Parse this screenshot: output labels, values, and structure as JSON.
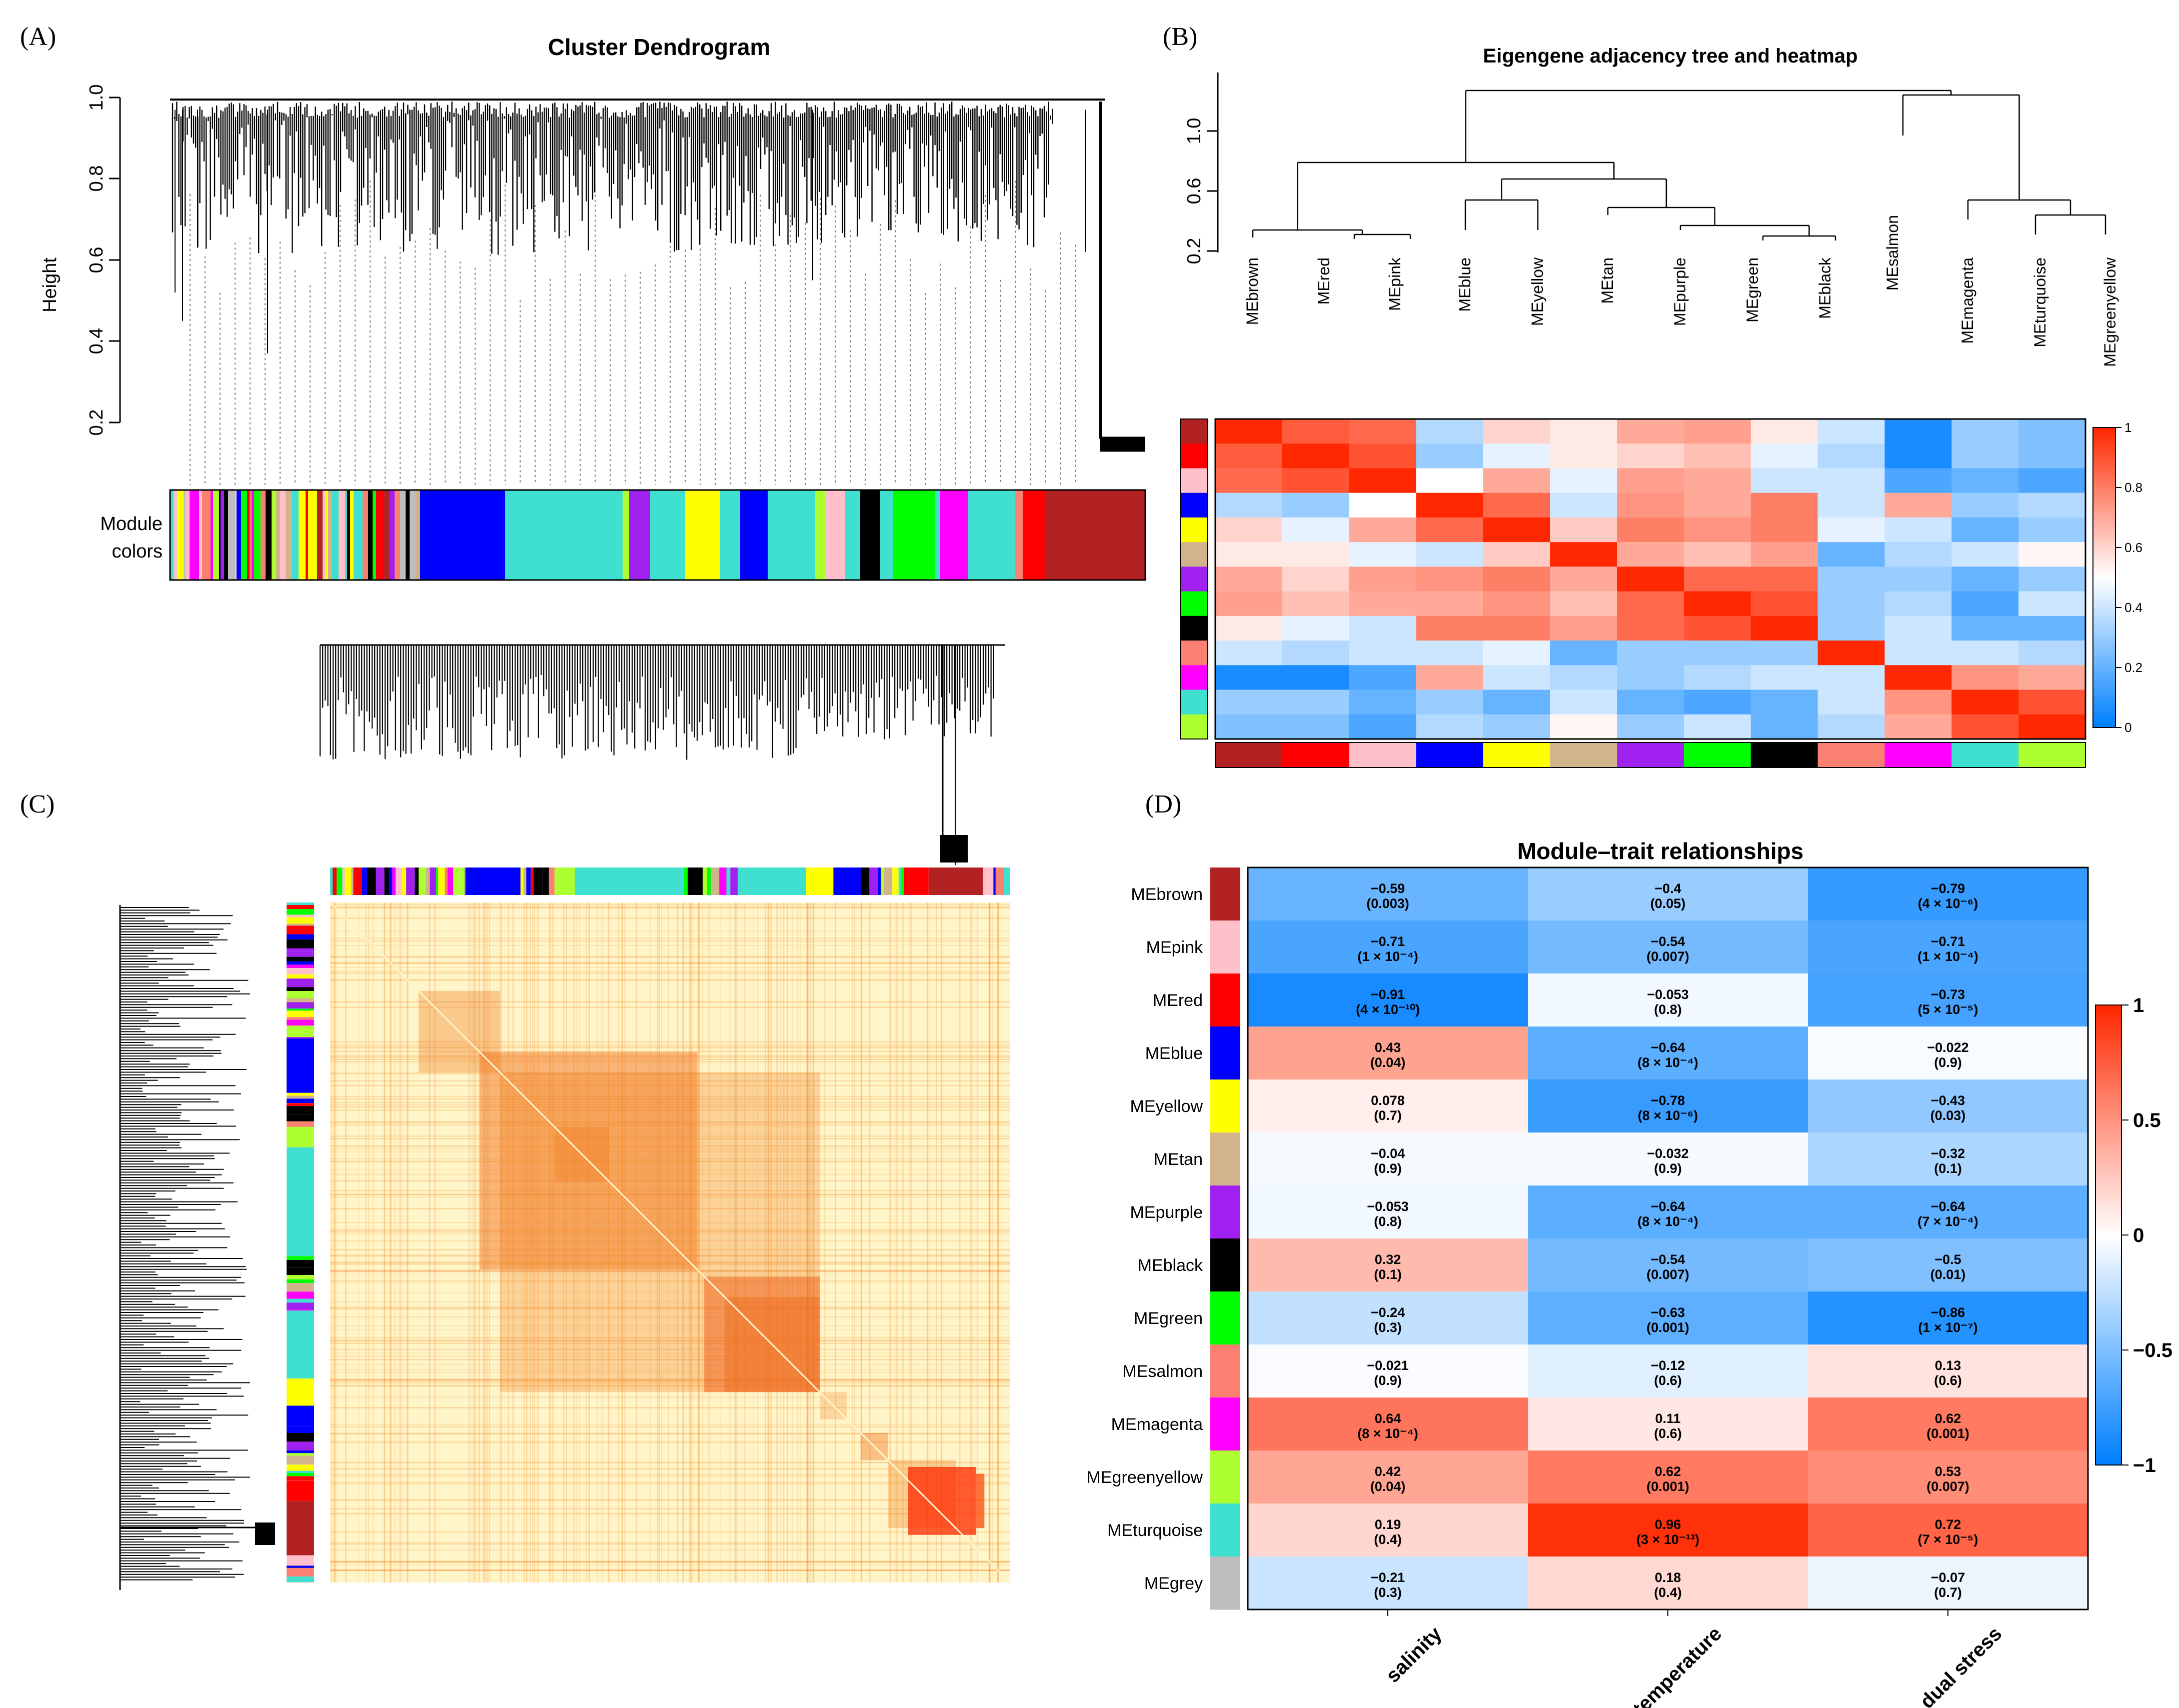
{
  "panels": {
    "A": {
      "label": "(A)",
      "title": "Cluster Dendrogram",
      "ylabel": "Height",
      "yticks": [
        "1.0",
        "0.8",
        "0.6",
        "0.4",
        "0.2"
      ],
      "module_colors_label_1": "Module",
      "module_colors_label_2": "colors"
    },
    "B": {
      "label": "(B)",
      "title": "Eigengene adjacency tree and heatmap",
      "yticks": [
        "1.0",
        "0.6",
        "0.2"
      ],
      "legend_ticks": [
        "1",
        "0.8",
        "0.6",
        "0.4",
        "0.2",
        "0"
      ]
    },
    "C": {
      "label": "(C)"
    },
    "D": {
      "label": "(D)",
      "title": "Module–trait relationships",
      "legend_ticks": [
        "1",
        "0.5",
        "0",
        "−0.5",
        "−1"
      ]
    }
  },
  "colors": {
    "brown": "#B22222",
    "red": "#FF0000",
    "pink": "#FFC0CB",
    "blue": "#0000FF",
    "yellow": "#FFFF00",
    "tan": "#D2B48C",
    "purple": "#A020F0",
    "green": "#00FF00",
    "black": "#000000",
    "salmon": "#FA8072",
    "magenta": "#FF00FF",
    "turquoise": "#40E0D0",
    "greenyellow": "#ADFF2F",
    "grey": "#BEBEBE"
  },
  "chart_data": [
    {
      "type": "heatmap",
      "panel": "B",
      "title": "Eigengene adjacency tree and heatmap",
      "dendrogram_labels": [
        "MEbrown",
        "MEred",
        "MEpink",
        "MEblue",
        "MEyellow",
        "MEtan",
        "MEpurple",
        "MEgreen",
        "MEblack",
        "MEsalmon",
        "MEmagenta",
        "MEturquoise",
        "MEgreenyellow"
      ],
      "rows": [
        "brown",
        "red",
        "pink",
        "blue",
        "yellow",
        "tan",
        "purple",
        "green",
        "black",
        "salmon",
        "magenta",
        "turquoise",
        "greenyellow"
      ],
      "cols": [
        "brown",
        "red",
        "pink",
        "blue",
        "yellow",
        "tan",
        "purple",
        "green",
        "black",
        "salmon",
        "magenta",
        "turquoise",
        "greenyellow"
      ],
      "values": [
        [
          1.0,
          0.88,
          0.85,
          0.35,
          0.6,
          0.55,
          0.7,
          0.72,
          0.55,
          0.4,
          0.05,
          0.3,
          0.25
        ],
        [
          0.88,
          1.0,
          0.9,
          0.3,
          0.45,
          0.55,
          0.6,
          0.65,
          0.45,
          0.35,
          0.05,
          0.3,
          0.25
        ],
        [
          0.85,
          0.9,
          1.0,
          0.5,
          0.7,
          0.45,
          0.72,
          0.7,
          0.4,
          0.4,
          0.15,
          0.2,
          0.15
        ],
        [
          0.35,
          0.3,
          0.5,
          1.0,
          0.85,
          0.4,
          0.75,
          0.7,
          0.8,
          0.4,
          0.7,
          0.3,
          0.35
        ],
        [
          0.6,
          0.45,
          0.7,
          0.85,
          1.0,
          0.62,
          0.8,
          0.75,
          0.8,
          0.45,
          0.4,
          0.2,
          0.3
        ],
        [
          0.55,
          0.55,
          0.45,
          0.4,
          0.62,
          1.0,
          0.7,
          0.65,
          0.72,
          0.2,
          0.35,
          0.4,
          0.52
        ],
        [
          0.7,
          0.6,
          0.72,
          0.75,
          0.8,
          0.7,
          1.0,
          0.85,
          0.85,
          0.3,
          0.3,
          0.2,
          0.3
        ],
        [
          0.72,
          0.65,
          0.7,
          0.7,
          0.75,
          0.65,
          0.85,
          1.0,
          0.9,
          0.3,
          0.35,
          0.15,
          0.4
        ],
        [
          0.55,
          0.45,
          0.4,
          0.8,
          0.8,
          0.72,
          0.85,
          0.9,
          1.0,
          0.3,
          0.4,
          0.2,
          0.2
        ],
        [
          0.4,
          0.35,
          0.4,
          0.4,
          0.45,
          0.2,
          0.3,
          0.3,
          0.3,
          1.0,
          0.4,
          0.4,
          0.35
        ],
        [
          0.05,
          0.05,
          0.15,
          0.7,
          0.4,
          0.35,
          0.3,
          0.35,
          0.4,
          0.4,
          1.0,
          0.75,
          0.7
        ],
        [
          0.3,
          0.3,
          0.2,
          0.3,
          0.2,
          0.4,
          0.2,
          0.15,
          0.2,
          0.4,
          0.75,
          1.0,
          0.9
        ],
        [
          0.25,
          0.25,
          0.15,
          0.35,
          0.3,
          0.52,
          0.3,
          0.4,
          0.2,
          0.35,
          0.7,
          0.9,
          1.0
        ]
      ],
      "legend_range": [
        0,
        1
      ],
      "ylim": [
        0.2,
        1.4
      ]
    },
    {
      "type": "heatmap",
      "panel": "D",
      "title": "Module–trait relationships",
      "rows": [
        "MEbrown",
        "MEpink",
        "MEred",
        "MEblue",
        "MEyellow",
        "MEtan",
        "MEpurple",
        "MEblack",
        "MEgreen",
        "MEsalmon",
        "MEmagenta",
        "MEgreenyellow",
        "MEturquoise",
        "MEgrey"
      ],
      "row_colors": [
        "brown",
        "pink",
        "red",
        "blue",
        "yellow",
        "tan",
        "purple",
        "black",
        "green",
        "salmon",
        "magenta",
        "greenyellow",
        "turquoise",
        "grey"
      ],
      "cols": [
        "salinity",
        "temperature",
        "dual stress"
      ],
      "values": [
        [
          -0.59,
          -0.4,
          -0.79
        ],
        [
          -0.71,
          -0.54,
          -0.71
        ],
        [
          -0.91,
          -0.053,
          -0.73
        ],
        [
          0.43,
          -0.64,
          -0.022
        ],
        [
          0.078,
          -0.78,
          -0.43
        ],
        [
          -0.04,
          -0.032,
          -0.32
        ],
        [
          -0.053,
          -0.64,
          -0.64
        ],
        [
          0.32,
          -0.54,
          -0.5
        ],
        [
          -0.24,
          -0.63,
          -0.86
        ],
        [
          -0.021,
          -0.12,
          0.13
        ],
        [
          0.64,
          0.11,
          0.62
        ],
        [
          0.42,
          0.62,
          0.53
        ],
        [
          0.19,
          0.96,
          0.72
        ],
        [
          -0.21,
          0.18,
          -0.07
        ]
      ],
      "cell_text": [
        [
          [
            "−0.59",
            "(0.003)"
          ],
          [
            "−0.4",
            "(0.05)"
          ],
          [
            "−0.79",
            "(4 × 10⁻⁶)"
          ]
        ],
        [
          [
            "−0.71",
            "(1 × 10⁻⁴)"
          ],
          [
            "−0.54",
            "(0.007)"
          ],
          [
            "−0.71",
            "(1 × 10⁻⁴)"
          ]
        ],
        [
          [
            "−0.91",
            "(4 × 10⁻¹⁰)"
          ],
          [
            "−0.053",
            "(0.8)"
          ],
          [
            "−0.73",
            "(5 × 10⁻⁵)"
          ]
        ],
        [
          [
            "0.43",
            "(0.04)"
          ],
          [
            "−0.64",
            "(8 × 10⁻⁴)"
          ],
          [
            "−0.022",
            "(0.9)"
          ]
        ],
        [
          [
            "0.078",
            "(0.7)"
          ],
          [
            "−0.78",
            "(8 × 10⁻⁶)"
          ],
          [
            "−0.43",
            "(0.03)"
          ]
        ],
        [
          [
            "−0.04",
            "(0.9)"
          ],
          [
            "−0.032",
            "(0.9)"
          ],
          [
            "−0.32",
            "(0.1)"
          ]
        ],
        [
          [
            "−0.053",
            "(0.8)"
          ],
          [
            "−0.64",
            "(8 × 10⁻⁴)"
          ],
          [
            "−0.64",
            "(7 × 10⁻⁴)"
          ]
        ],
        [
          [
            "0.32",
            "(0.1)"
          ],
          [
            "−0.54",
            "(0.007)"
          ],
          [
            "−0.5",
            "(0.01)"
          ]
        ],
        [
          [
            "−0.24",
            "(0.3)"
          ],
          [
            "−0.63",
            "(0.001)"
          ],
          [
            "−0.86",
            "(1 × 10⁻⁷)"
          ]
        ],
        [
          [
            "−0.021",
            "(0.9)"
          ],
          [
            "−0.12",
            "(0.6)"
          ],
          [
            "0.13",
            "(0.6)"
          ]
        ],
        [
          [
            "0.64",
            "(8 × 10⁻⁴)"
          ],
          [
            "0.11",
            "(0.6)"
          ],
          [
            "0.62",
            "(0.001)"
          ]
        ],
        [
          [
            "0.42",
            "(0.04)"
          ],
          [
            "0.62",
            "(0.001)"
          ],
          [
            "0.53",
            "(0.007)"
          ]
        ],
        [
          [
            "0.19",
            "(0.4)"
          ],
          [
            "0.96",
            "(3 × 10⁻¹³)"
          ],
          [
            "0.72",
            "(7 × 10⁻⁵)"
          ]
        ],
        [
          [
            "−0.21",
            "(0.3)"
          ],
          [
            "0.18",
            "(0.4)"
          ],
          [
            "−0.07",
            "(0.7)"
          ]
        ]
      ],
      "legend_range": [
        -1,
        1
      ]
    }
  ]
}
